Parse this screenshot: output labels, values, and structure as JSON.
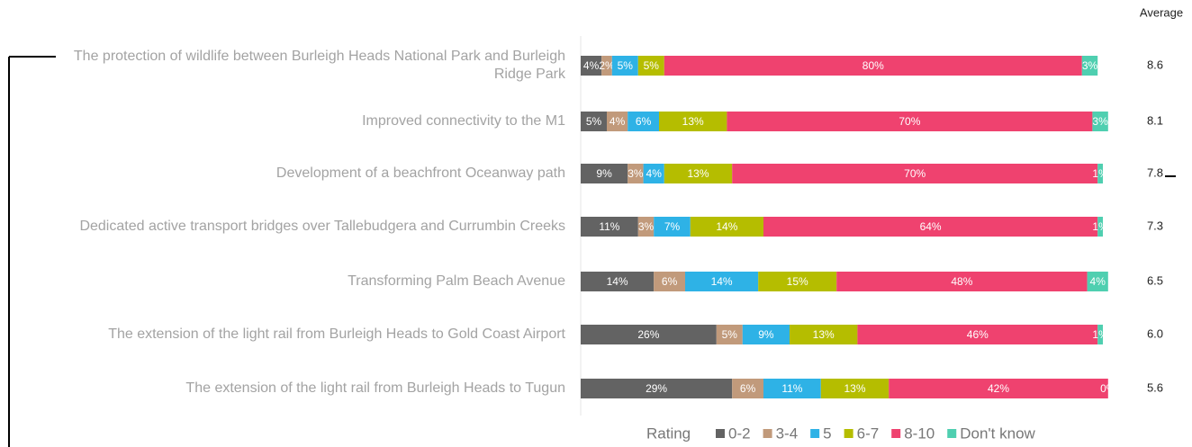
{
  "chart_data": {
    "type": "stacked-bar-horizontal",
    "categories": [
      "The protection of wildlife between Burleigh Heads National Park and Burleigh Ridge Park",
      "Improved connectivity to the M1",
      "Development of a beachfront Oceanway path",
      "Dedicated active transport bridges over Tallebudgera and Currumbin Creeks",
      "Transforming Palm Beach Avenue",
      "The extension of the light rail from Burleigh Heads to Gold Coast Airport",
      "The extension of the light rail from Burleigh Heads to Tugun"
    ],
    "legend_title": "Rating",
    "series": [
      {
        "name": "0-2",
        "color": "#636363",
        "values": [
          4,
          5,
          9,
          11,
          14,
          26,
          29
        ],
        "value_labels": [
          "4%",
          "5%",
          "9%",
          "11%",
          "14%",
          "26%",
          "29%"
        ]
      },
      {
        "name": "3-4",
        "color": "#c19a7b",
        "values": [
          2,
          4,
          3,
          3,
          6,
          5,
          6
        ],
        "value_labels": [
          "2%",
          "4%",
          "3%",
          "3%",
          "6%",
          "5%",
          "6%"
        ]
      },
      {
        "name": "5",
        "color": "#2eb2e6",
        "values": [
          5,
          6,
          4,
          7,
          14,
          9,
          11
        ],
        "value_labels": [
          "5%",
          "6%",
          "4%",
          "7%",
          "14%",
          "9%",
          "11%"
        ]
      },
      {
        "name": "6-7",
        "color": "#b5bd00",
        "values": [
          5,
          13,
          13,
          14,
          15,
          13,
          13
        ],
        "value_labels": [
          "5%",
          "13%",
          "13%",
          "14%",
          "15%",
          "13%",
          "13%"
        ]
      },
      {
        "name": "8-10",
        "color": "#ef426f",
        "values": [
          80,
          70,
          70,
          64,
          48,
          46,
          42
        ],
        "value_labels": [
          "80%",
          "70%",
          "70%",
          "64%",
          "48%",
          "46%",
          "42%"
        ]
      },
      {
        "name": "Don't know",
        "color": "#4fcfb0",
        "values": [
          3,
          3,
          1,
          1,
          4,
          1,
          0
        ],
        "value_labels": [
          "3%",
          "3%",
          "1%",
          "1%",
          "4%",
          "1%",
          "0%"
        ]
      }
    ],
    "average_title": "Average",
    "averages": [
      8.6,
      8.1,
      7.8,
      7.3,
      6.5,
      6.0,
      5.6
    ],
    "average_labels": [
      "8.6",
      "8.1",
      "7.8",
      "7.3",
      "6.5",
      "6.0",
      "5.6"
    ]
  }
}
